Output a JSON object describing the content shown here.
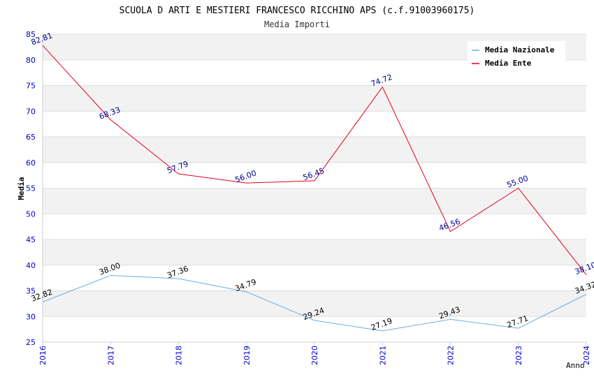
{
  "chart_data": {
    "type": "line",
    "title": "SCUOLA D ARTI E MESTIERI FRANCESCO RICCHINO APS (c.f.91003960175)",
    "subtitle": "Media Importi",
    "xlabel": "Anno",
    "ylabel": "Media",
    "ylim": [
      25,
      85
    ],
    "y_ticks": [
      25,
      30,
      35,
      40,
      45,
      50,
      55,
      60,
      65,
      70,
      75,
      80,
      85
    ],
    "categories": [
      "2016",
      "2017",
      "2018",
      "2019",
      "2020",
      "2021",
      "2022",
      "2023",
      "2024"
    ],
    "series": [
      {
        "name": "Media Nazionale",
        "color": "#6aade4",
        "label_color": "#000000",
        "values": [
          32.82,
          38.0,
          37.36,
          34.79,
          29.24,
          27.19,
          29.43,
          27.71,
          34.32
        ],
        "labels": [
          "32.82",
          "38.00",
          "37.36",
          "34.79",
          "29.24",
          "27.19",
          "29.43",
          "27.71",
          "34.32"
        ]
      },
      {
        "name": "Media Ente",
        "color": "#e3001b",
        "label_color": "#00008b",
        "values": [
          82.81,
          68.33,
          57.79,
          56.0,
          56.45,
          74.72,
          46.56,
          55.0,
          38.1
        ],
        "labels": [
          "82.81",
          "68.33",
          "57.79",
          "56.00",
          "56.45",
          "74.72",
          "46.56",
          "55.00",
          "38.10"
        ]
      }
    ],
    "grid": true,
    "legend_position": "top-right",
    "colors": {
      "band": "#f2f2f2",
      "grid": "#dddddd",
      "tick_text": "#0000cc"
    }
  }
}
